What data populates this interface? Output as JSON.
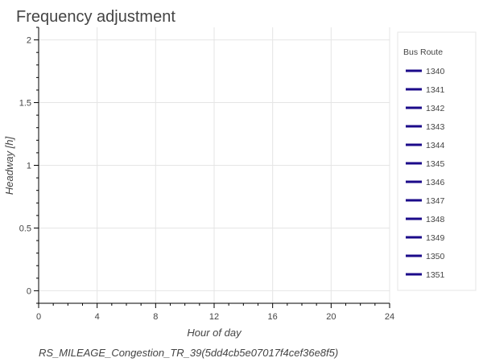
{
  "chart_data": {
    "type": "line",
    "title": "Frequency adjustment",
    "subtitle": "RS_MILEAGE_Congestion_TR_39(5dd4cb5e07017f4cef36e8f5)",
    "xlabel": "Hour of day",
    "ylabel": "Headway [h]",
    "xlim": [
      0,
      24
    ],
    "ylim": [
      -0.1,
      2.1
    ],
    "x_ticks": [
      0,
      4,
      8,
      12,
      16,
      20,
      24
    ],
    "x_tick_labels": [
      "0",
      "4",
      "8",
      "12",
      "16",
      "20",
      "24"
    ],
    "y_ticks": [
      0,
      0.5,
      1,
      1.5,
      2
    ],
    "y_tick_labels": [
      "0",
      "0.5",
      "1",
      "1.5",
      "2"
    ],
    "grid": true,
    "legend": {
      "title": "Bus Route",
      "placement": "right"
    },
    "line_color": "#1b0a8a",
    "series": [
      {
        "name": "1340",
        "x": [],
        "y": []
      },
      {
        "name": "1341",
        "x": [],
        "y": []
      },
      {
        "name": "1342",
        "x": [],
        "y": []
      },
      {
        "name": "1343",
        "x": [],
        "y": []
      },
      {
        "name": "1344",
        "x": [],
        "y": []
      },
      {
        "name": "1345",
        "x": [],
        "y": []
      },
      {
        "name": "1346",
        "x": [],
        "y": []
      },
      {
        "name": "1347",
        "x": [],
        "y": []
      },
      {
        "name": "1348",
        "x": [],
        "y": []
      },
      {
        "name": "1349",
        "x": [],
        "y": []
      },
      {
        "name": "1350",
        "x": [],
        "y": []
      },
      {
        "name": "1351",
        "x": [],
        "y": []
      }
    ]
  }
}
